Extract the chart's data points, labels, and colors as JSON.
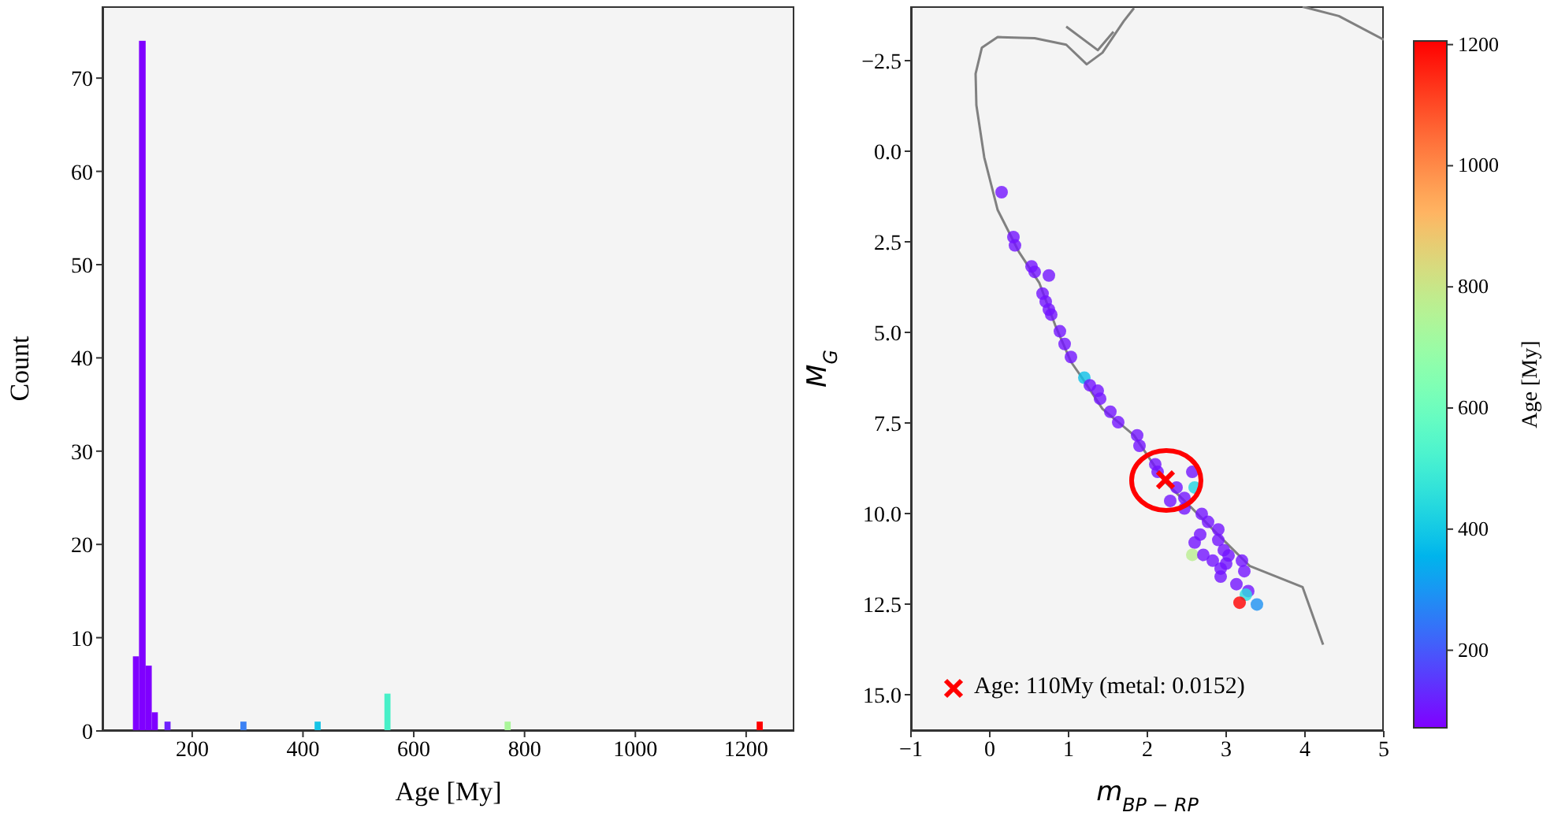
{
  "chart_data": [
    {
      "type": "histogram",
      "xlabel": "Age [My]",
      "ylabel": "Count",
      "bins": [
        93,
        104,
        116,
        127,
        138,
        150,
        161,
        287,
        298,
        421,
        432,
        547,
        558,
        764,
        775,
        1219,
        1230
      ],
      "values": [
        8,
        74,
        7,
        2,
        0,
        1,
        0,
        1,
        0,
        1,
        0,
        4,
        0,
        1,
        0,
        1
      ],
      "colors": [
        "#7f00ff",
        "#7f00ff",
        "#7f00ff",
        "#7f00ff",
        "#7810fe",
        "#6f22fd",
        "#6f22fd",
        "#3c82f4",
        "#3c82f4",
        "#16c4e6",
        "#16c4e6",
        "#48f0c8",
        "#48f0c8",
        "#aaf69a",
        "#aaf69a",
        "#ff0000"
      ],
      "xlim": [
        38,
        1287
      ],
      "xticks": [
        200,
        400,
        600,
        800,
        1000,
        1200
      ],
      "ylim": [
        0,
        77.7
      ],
      "yticks": [
        0,
        10,
        20,
        30,
        40,
        50,
        60,
        70
      ]
    },
    {
      "type": "scatter",
      "xlabel": "m$_{BP − RP}$",
      "ylabel": "M$_{G}$",
      "clabel": "Age [My]",
      "xlim": [
        -1,
        5
      ],
      "xticks": [
        {
          "value": -1,
          "label": "−1"
        },
        0,
        1,
        2,
        3,
        4,
        5
      ],
      "ylim": [
        16,
        -4
      ],
      "yticks": [
        {
          "value": -2.5,
          "label": "−2.5"
        },
        {
          "value": 0,
          "label": "0.0"
        },
        {
          "value": 2.5,
          "label": "2.5"
        },
        {
          "value": 5,
          "label": "5.0"
        },
        {
          "value": 7.5,
          "label": "7.5"
        },
        {
          "value": 10,
          "label": "10.0"
        },
        {
          "value": 12.5,
          "label": "12.5"
        },
        {
          "value": 15,
          "label": "15.0"
        }
      ],
      "clim": [
        72,
        1206
      ],
      "cticks": [
        200,
        400,
        600,
        800,
        1000,
        1200
      ],
      "legend": "bottom left",
      "series": [
        {
          "type": "line",
          "color": "#808080",
          "x": [
            1.83,
            1.7,
            1.43,
            1.23,
            0.97,
            0.57,
            0.1,
            -0.1,
            -0.18,
            -0.17,
            -0.07,
            0.1,
            0.37,
            0.63,
            0.83,
            1.03,
            1.17,
            1.43,
            1.83,
            2.23,
            2.57,
            2.9,
            3.3,
            3.97,
            4.23
          ],
          "values": [
            -3.95,
            -3.59,
            -2.72,
            -2.4,
            -2.94,
            -3.12,
            -3.15,
            -2.86,
            -2.14,
            -1.27,
            0.17,
            1.62,
            2.78,
            3.64,
            4.8,
            5.81,
            6.25,
            7.11,
            7.84,
            9.14,
            9.86,
            10.59,
            11.45,
            12.03,
            13.62
          ]
        },
        {
          "type": "line",
          "color": "#808080",
          "x": [
            0.97,
            1.37,
            1.57
          ],
          "values": [
            -3.44,
            -2.79,
            -3.3
          ]
        },
        {
          "type": "line",
          "color": "#808080",
          "x": [
            3.97,
            4.43,
            5.0
          ],
          "values": [
            -3.99,
            -3.73,
            -3.08
          ]
        },
        {
          "type": "scatter",
          "marker": "circle",
          "x": [
            0.15,
            0.3,
            0.32,
            0.53,
            0.57,
            0.75,
            0.67,
            0.71,
            0.75,
            0.78,
            0.89,
            0.95,
            1.03,
            1.2,
            1.27,
            1.37,
            1.4,
            1.53,
            1.63,
            1.87,
            1.9,
            2.1,
            2.13,
            2.29,
            2.37,
            2.47,
            2.47,
            2.6,
            2.57,
            2.69,
            2.77,
            2.67,
            2.6,
            2.57,
            2.71,
            2.9,
            2.9,
            2.97,
            3.03,
            2.83,
            2.93,
            3.0,
            2.93,
            3.2,
            3.23,
            3.13,
            3.28,
            3.25,
            3.17,
            3.39
          ],
          "values": [
            1.13,
            2.37,
            2.6,
            3.18,
            3.33,
            3.43,
            3.93,
            4.15,
            4.37,
            4.51,
            4.97,
            5.32,
            5.68,
            6.25,
            6.46,
            6.61,
            6.83,
            7.19,
            7.48,
            7.84,
            8.13,
            8.64,
            8.85,
            9.65,
            9.28,
            9.57,
            9.86,
            9.28,
            8.85,
            10.01,
            10.23,
            10.58,
            10.8,
            11.14,
            11.14,
            10.44,
            10.73,
            11.01,
            11.16,
            11.3,
            11.52,
            11.38,
            11.74,
            11.3,
            11.59,
            11.95,
            12.14,
            12.24,
            12.46,
            12.51
          ],
          "colors": [
            "#7314ff",
            "#7314ff",
            "#7314ff",
            "#7314ff",
            "#7314ff",
            "#7314ff",
            "#7314ff",
            "#7314ff",
            "#7314ff",
            "#7314ff",
            "#7314ff",
            "#7314ff",
            "#7314ff",
            "#0bc0e8",
            "#7314ff",
            "#7314ff",
            "#7314ff",
            "#7314ff",
            "#7314ff",
            "#7314ff",
            "#7314ff",
            "#7314ff",
            "#7314ff",
            "#7314ff",
            "#7314ff",
            "#7314ff",
            "#7314ff",
            "#21d5e0",
            "#7314ff",
            "#7314ff",
            "#7314ff",
            "#7314ff",
            "#7314ff",
            "#baee91",
            "#7314ff",
            "#7314ff",
            "#7314ff",
            "#7314ff",
            "#7314ff",
            "#7314ff",
            "#7314ff",
            "#7314ff",
            "#7314ff",
            "#7314ff",
            "#7314ff",
            "#7314ff",
            "#7314ff",
            "#2bdddd",
            "#ff0000",
            "#1d91f3"
          ]
        },
        {
          "type": "scatter",
          "marker": "cross",
          "name": "Age: 110My (metal: 0.0152)",
          "color": "#ff0000",
          "x": [
            2.23
          ],
          "values": [
            9.07
          ]
        }
      ]
    }
  ]
}
